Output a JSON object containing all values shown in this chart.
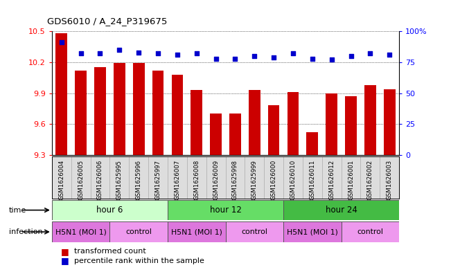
{
  "title": "GDS6010 / A_24_P319675",
  "samples": [
    "GSM1626004",
    "GSM1626005",
    "GSM1626006",
    "GSM1625995",
    "GSM1625996",
    "GSM1625997",
    "GSM1626007",
    "GSM1626008",
    "GSM1626009",
    "GSM1625998",
    "GSM1625999",
    "GSM1626000",
    "GSM1626010",
    "GSM1626011",
    "GSM1626012",
    "GSM1626001",
    "GSM1626002",
    "GSM1626003"
  ],
  "bar_values": [
    10.48,
    10.12,
    10.15,
    10.19,
    10.19,
    10.12,
    10.08,
    9.93,
    9.7,
    9.7,
    9.93,
    9.78,
    9.91,
    9.52,
    9.9,
    9.87,
    9.98,
    9.94
  ],
  "dot_values": [
    91,
    82,
    82,
    85,
    83,
    82,
    81,
    82,
    78,
    78,
    80,
    79,
    82,
    78,
    77,
    80,
    82,
    81
  ],
  "ylim_left": [
    9.3,
    10.5
  ],
  "ylim_right": [
    0,
    100
  ],
  "yticks_left": [
    9.3,
    9.6,
    9.9,
    10.2,
    10.5
  ],
  "yticks_right": [
    0,
    25,
    50,
    75,
    100
  ],
  "bar_color": "#cc0000",
  "dot_color": "#0000cc",
  "time_groups": [
    {
      "label": "hour 6",
      "start": 0,
      "end": 6,
      "color": "#ccffcc"
    },
    {
      "label": "hour 12",
      "start": 6,
      "end": 12,
      "color": "#66dd66"
    },
    {
      "label": "hour 24",
      "start": 12,
      "end": 18,
      "color": "#44bb44"
    }
  ],
  "infection_groups": [
    {
      "label": "H5N1 (MOI 1)",
      "start": 0,
      "end": 3,
      "color": "#dd77dd"
    },
    {
      "label": "control",
      "start": 3,
      "end": 6,
      "color": "#ee99ee"
    },
    {
      "label": "H5N1 (MOI 1)",
      "start": 6,
      "end": 9,
      "color": "#dd77dd"
    },
    {
      "label": "control",
      "start": 9,
      "end": 12,
      "color": "#ee99ee"
    },
    {
      "label": "H5N1 (MOI 1)",
      "start": 12,
      "end": 15,
      "color": "#dd77dd"
    },
    {
      "label": "control",
      "start": 15,
      "end": 18,
      "color": "#ee99ee"
    }
  ],
  "legend": [
    {
      "label": "transformed count",
      "color": "#cc0000"
    },
    {
      "label": "percentile rank within the sample",
      "color": "#0000cc"
    }
  ]
}
